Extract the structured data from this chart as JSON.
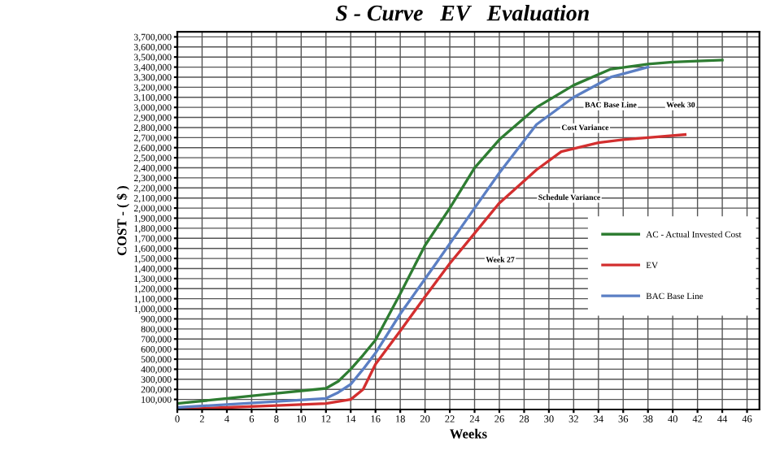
{
  "chart_data": {
    "type": "line",
    "title": "S - Curve   EV   Evaluation",
    "xlabel": "Weeks",
    "ylabel": "COST - ( $ )",
    "xlim": [
      0,
      47
    ],
    "xticks": [
      0,
      2,
      4,
      6,
      8,
      10,
      12,
      14,
      16,
      18,
      20,
      22,
      24,
      26,
      28,
      30,
      32,
      34,
      36,
      38,
      40,
      42,
      44,
      46
    ],
    "ylim": [
      0,
      3750000
    ],
    "yticks": [
      {
        "value": 100000,
        "label": "100,000"
      },
      {
        "value": 200000,
        "label": "200,000"
      },
      {
        "value": 300000,
        "label": "300,000"
      },
      {
        "value": 400000,
        "label": "400,000"
      },
      {
        "value": 500000,
        "label": "500,000"
      },
      {
        "value": 600000,
        "label": "600,000"
      },
      {
        "value": 700000,
        "label": "700,000"
      },
      {
        "value": 800000,
        "label": "800,000"
      },
      {
        "value": 900000,
        "label": "900,000"
      },
      {
        "value": 1000000,
        "label": "1,000,000"
      },
      {
        "value": 1100000,
        "label": "1,100,000"
      },
      {
        "value": 1200000,
        "label": "1,200,000"
      },
      {
        "value": 1300000,
        "label": "1,300,000"
      },
      {
        "value": 1400000,
        "label": "1,400,000"
      },
      {
        "value": 1500000,
        "label": "1,500,000"
      },
      {
        "value": 1600000,
        "label": "1,600,000"
      },
      {
        "value": 1700000,
        "label": "1,700,000"
      },
      {
        "value": 1800000,
        "label": "1,800,000"
      },
      {
        "value": 1900000,
        "label": "1,900,000"
      },
      {
        "value": 2000000,
        "label": "2,000,000"
      },
      {
        "value": 2100000,
        "label": "2,100,000"
      },
      {
        "value": 2200000,
        "label": "2,200,000"
      },
      {
        "value": 2300000,
        "label": "2,300,000"
      },
      {
        "value": 2400000,
        "label": "2,400,000"
      },
      {
        "value": 2500000,
        "label": "2,500,000"
      },
      {
        "value": 2600000,
        "label": "2,600,000"
      },
      {
        "value": 2700000,
        "label": "2,700,000"
      },
      {
        "value": 2800000,
        "label": "2,800,000"
      },
      {
        "value": 2900000,
        "label": "2,900,000"
      },
      {
        "value": 3000000,
        "label": "3,000,000"
      },
      {
        "value": 3100000,
        "label": "3,100,000"
      },
      {
        "value": 3200000,
        "label": "3,200,000"
      },
      {
        "value": 3300000,
        "label": "3,300,000"
      },
      {
        "value": 3400000,
        "label": "3,400,000"
      },
      {
        "value": 3500000,
        "label": "3,500,000"
      },
      {
        "value": 3600000,
        "label": "3,600,000"
      },
      {
        "value": 3700000,
        "label": "3,700,000"
      }
    ],
    "grid": true,
    "legend": "right",
    "marker": "none",
    "line_style": "solid",
    "series": [
      {
        "name": "AC - Actual Invested Cost",
        "color": "#2e7d32",
        "x": [
          0,
          4,
          8,
          12,
          13,
          14,
          15,
          16,
          18,
          20,
          22,
          24,
          26,
          29,
          32,
          35,
          38,
          40,
          42,
          44
        ],
        "values": [
          60000,
          110000,
          160000,
          210000,
          280000,
          400000,
          540000,
          690000,
          1150000,
          1630000,
          2000000,
          2400000,
          2680000,
          3000000,
          3220000,
          3380000,
          3430000,
          3450000,
          3460000,
          3470000
        ]
      },
      {
        "name": "EV",
        "color": "#d32f2f",
        "x": [
          0,
          4,
          8,
          12,
          14,
          15,
          16,
          18,
          20,
          22,
          24,
          26,
          29,
          31,
          34,
          36,
          38,
          41
        ],
        "values": [
          0,
          20000,
          40000,
          60000,
          100000,
          200000,
          450000,
          780000,
          1120000,
          1450000,
          1750000,
          2050000,
          2380000,
          2560000,
          2650000,
          2680000,
          2700000,
          2730000
        ]
      },
      {
        "name": "BAC Base Line",
        "color": "#5b7fc4",
        "x": [
          0,
          4,
          8,
          12,
          13,
          14,
          15,
          16,
          18,
          21,
          24,
          26,
          29,
          32,
          35,
          38
        ],
        "values": [
          20000,
          50000,
          80000,
          110000,
          170000,
          250000,
          400000,
          560000,
          950000,
          1470000,
          2000000,
          2350000,
          2830000,
          3100000,
          3300000,
          3400000
        ]
      }
    ],
    "annotations": [
      "BAC Base Line",
      "Cost Variance",
      "Schedule Variance",
      "Week 30",
      "Week 27"
    ]
  }
}
